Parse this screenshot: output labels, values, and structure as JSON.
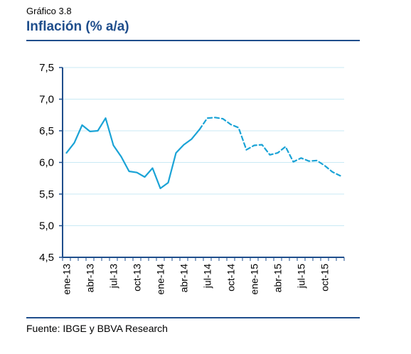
{
  "header": {
    "figure_label": "Gráfico 3.8",
    "title": "Inflación (% a/a)"
  },
  "footer": {
    "source": "Fuente: IBGE y BBVA Research"
  },
  "colors": {
    "accent": "#1f4e8c",
    "line": "#1aa3d6",
    "grid": "#c9eaf5",
    "axis": "#1f4e8c"
  },
  "chart_data": {
    "type": "line",
    "title": "Inflación (% a/a)",
    "xlabel": "",
    "ylabel": "",
    "ylim": [
      4.5,
      7.5
    ],
    "y_ticks": [
      "7,5",
      "7,0",
      "6,5",
      "6,0",
      "5,5",
      "5,0",
      "4,5"
    ],
    "y_tick_values": [
      7.5,
      7.0,
      6.5,
      6.0,
      5.5,
      5.0,
      4.5
    ],
    "x_tick_labels": [
      "ene-13",
      "abr-13",
      "jul-13",
      "oct-13",
      "ene-14",
      "abr-14",
      "jul-14",
      "oct-14",
      "ene-15",
      "abr-15",
      "jul-15",
      "oct-15"
    ],
    "x_tick_month_index": [
      0,
      3,
      6,
      9,
      12,
      15,
      18,
      21,
      24,
      27,
      30,
      33
    ],
    "grid": "horizontal",
    "months": [
      "ene-13",
      "feb-13",
      "mar-13",
      "abr-13",
      "may-13",
      "jun-13",
      "jul-13",
      "ago-13",
      "sep-13",
      "oct-13",
      "nov-13",
      "dic-13",
      "ene-14",
      "feb-14",
      "mar-14",
      "abr-14",
      "may-14",
      "jun-14",
      "jul-14",
      "ago-14",
      "sep-14",
      "oct-14",
      "nov-14",
      "dic-14",
      "ene-15",
      "feb-15",
      "mar-15",
      "abr-15",
      "may-15",
      "jun-15",
      "jul-15",
      "ago-15",
      "sep-15",
      "oct-15",
      "nov-15",
      "dic-15"
    ],
    "series": [
      {
        "style": "solid",
        "values": [
          6.15,
          6.31,
          6.59,
          6.49,
          6.5,
          6.7,
          6.27,
          6.09,
          5.86,
          5.84,
          5.77,
          5.91,
          5.59,
          5.68,
          6.15,
          6.28,
          6.37,
          6.52
        ]
      },
      {
        "style": "dashed",
        "start_index": 17,
        "values": [
          6.52,
          6.7,
          6.71,
          6.69,
          6.6,
          6.55,
          6.2,
          6.27,
          6.28,
          6.12,
          6.15,
          6.25,
          6.01,
          6.07,
          6.02,
          6.03,
          5.95,
          5.85,
          5.79
        ]
      }
    ]
  }
}
